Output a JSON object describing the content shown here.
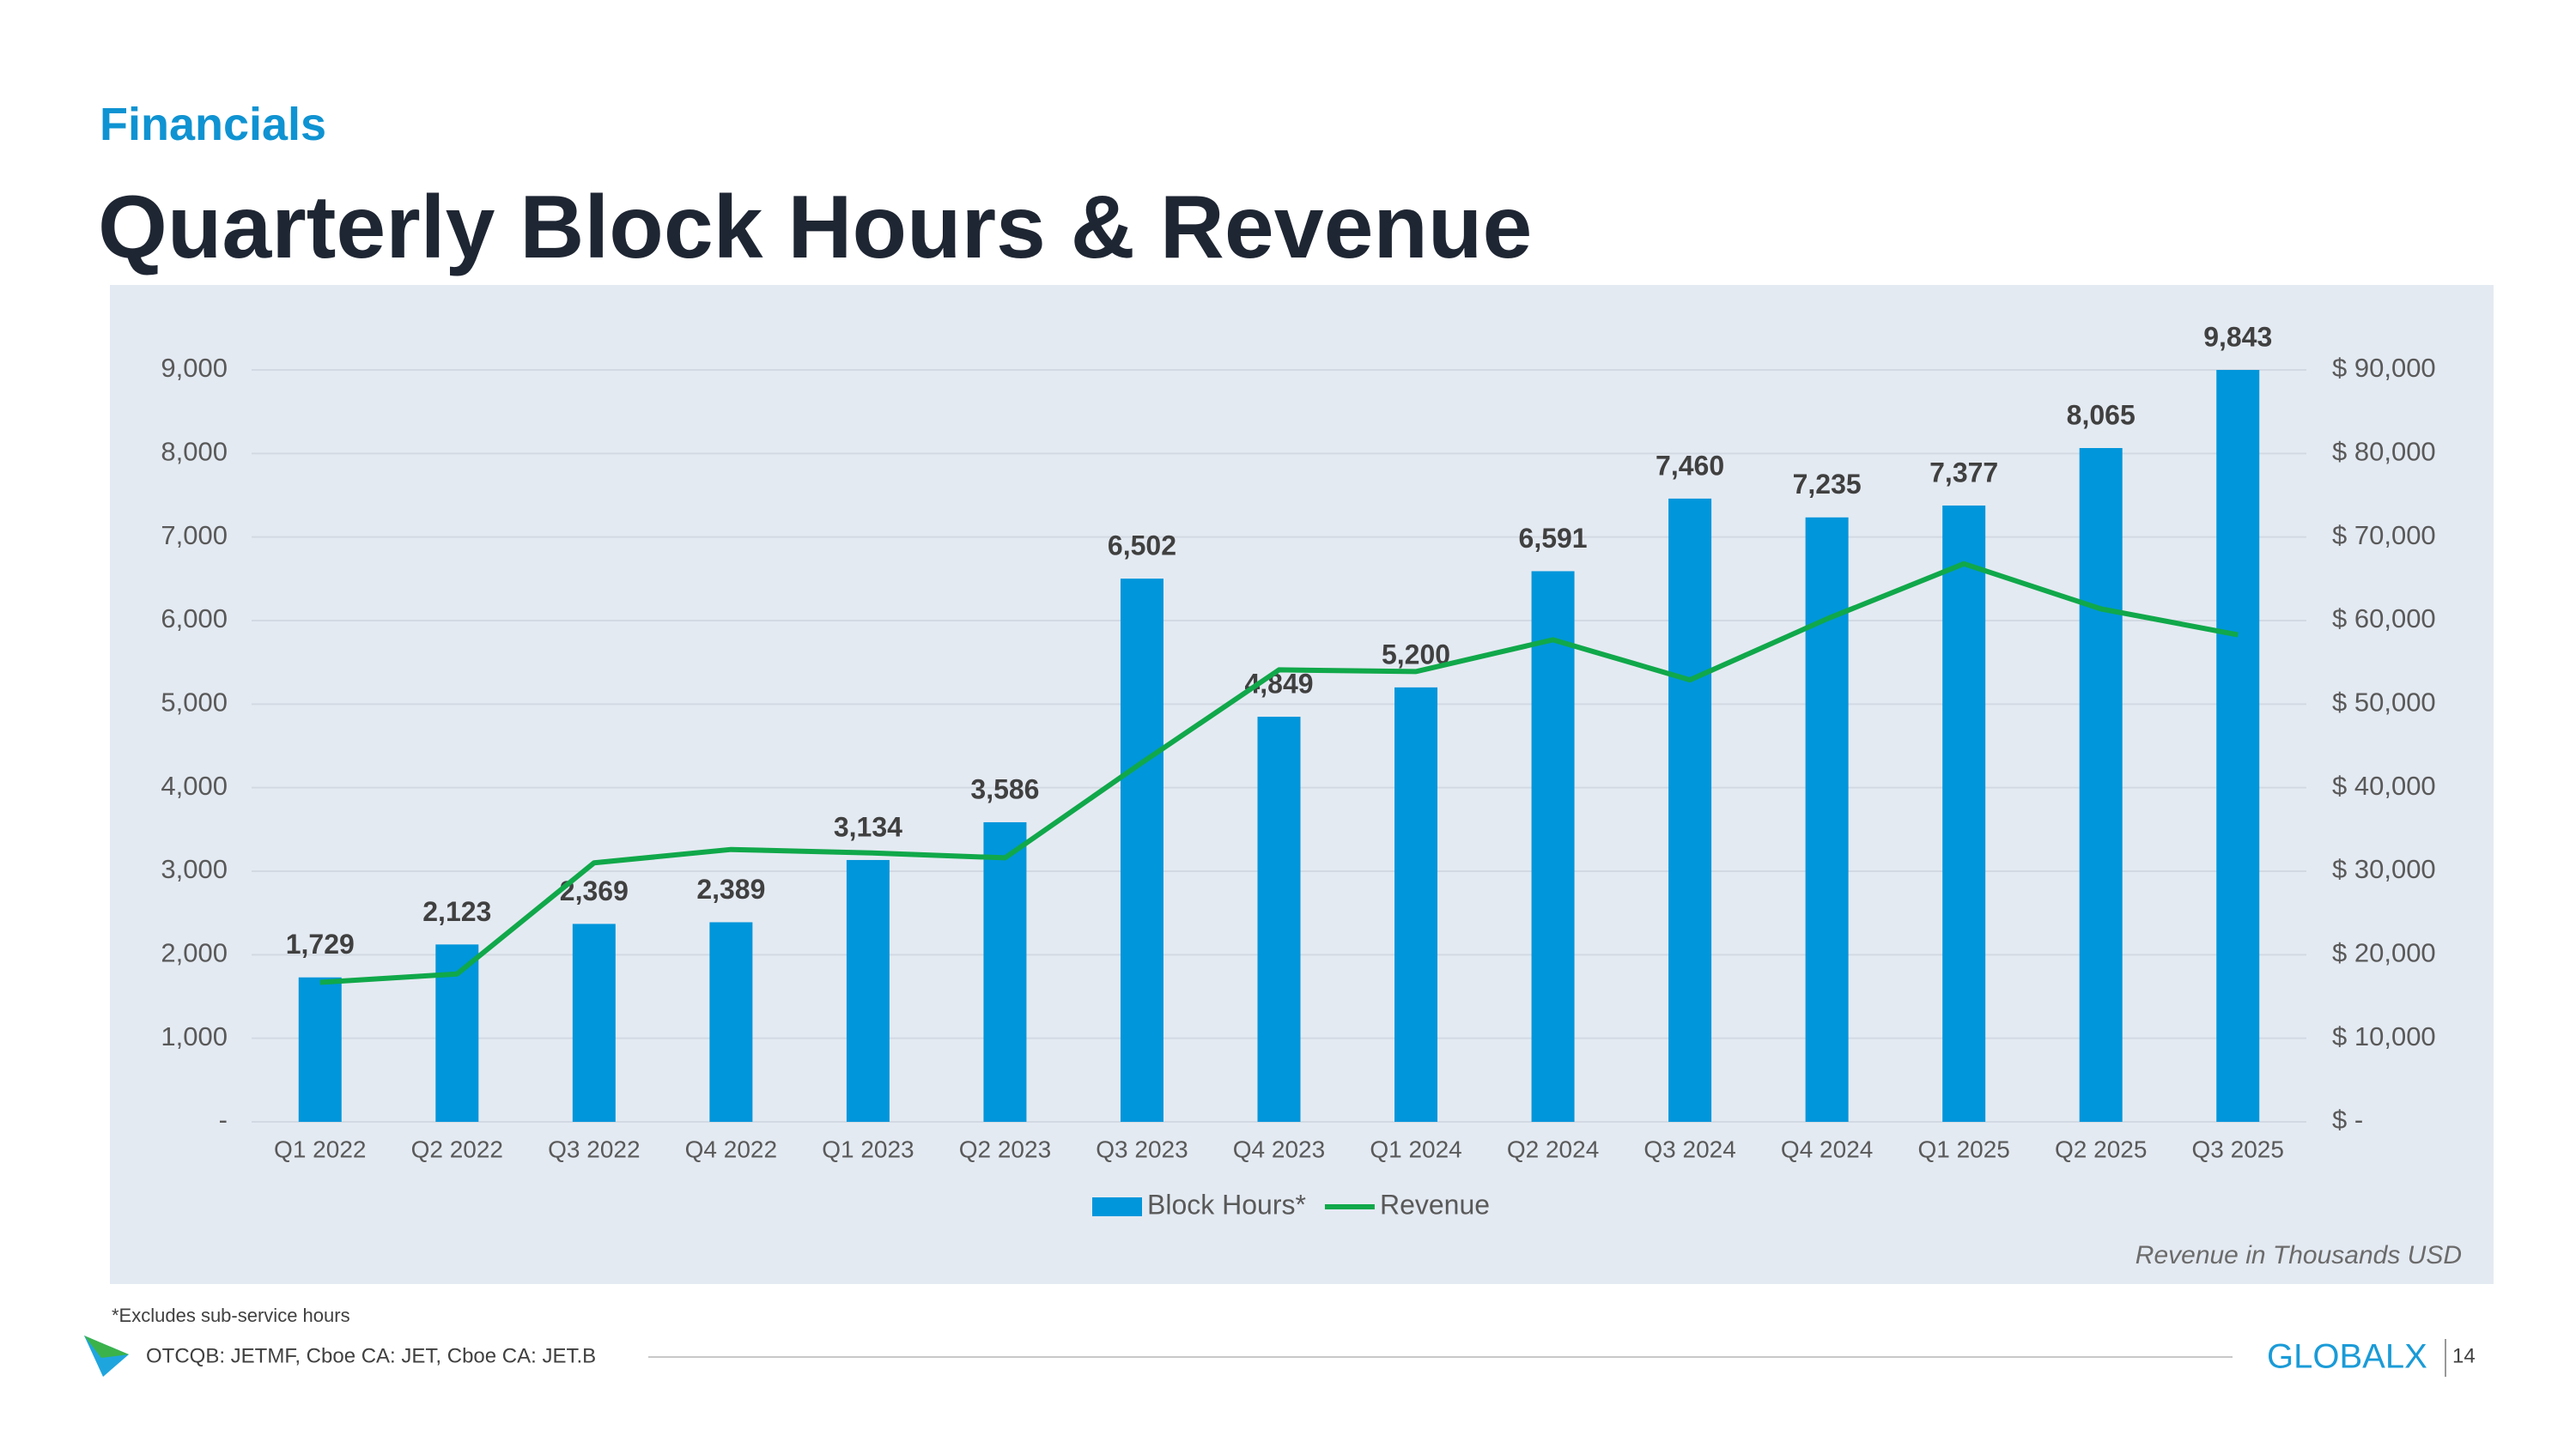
{
  "page": {
    "section": "Financials",
    "title": "Quarterly Block Hours & Revenue",
    "note": "Revenue in Thousands USD",
    "footnote": "*Excludes sub-service hours",
    "footer": "OTCQB: JETMF, Cboe CA: JET, Cboe CA: JET.B",
    "logo": "GLOBALX",
    "page_number": "14"
  },
  "chart_data": {
    "type": "bar_line",
    "categories": [
      "Q1 2022",
      "Q2 2022",
      "Q3 2022",
      "Q4 2022",
      "Q1 2023",
      "Q2 2023",
      "Q3 2023",
      "Q4 2023",
      "Q1 2024",
      "Q2 2024",
      "Q3 2024",
      "Q4 2024",
      "Q1 2025",
      "Q2 2025",
      "Q3 2025"
    ],
    "series": [
      {
        "name": "Block Hours*",
        "type": "bar",
        "color": "#0096db",
        "values": [
          1729,
          2123,
          2369,
          2389,
          3134,
          3586,
          6502,
          4849,
          5200,
          6591,
          7460,
          7235,
          7377,
          8065,
          9843
        ],
        "value_labels": [
          "1,729",
          "2,123",
          "2,369",
          "2,389",
          "3,134",
          "3,586",
          "6,502",
          "4,849",
          "5,200",
          "6,591",
          "7,460",
          "7,235",
          "7,377",
          "8,065",
          "9,843"
        ]
      },
      {
        "name": "Revenue",
        "type": "line",
        "axis": "y2",
        "color": "#10a84a",
        "values": [
          16700,
          17700,
          31000,
          32600,
          32200,
          31600,
          43000,
          54100,
          53900,
          57700,
          52900,
          60200,
          66800,
          61400,
          58300
        ]
      }
    ],
    "ylim": [
      0,
      9000
    ],
    "yticks": [
      {
        "value": 0,
        "label": "-"
      },
      {
        "value": 1000,
        "label": "1,000"
      },
      {
        "value": 2000,
        "label": "2,000"
      },
      {
        "value": 3000,
        "label": "3,000"
      },
      {
        "value": 4000,
        "label": "4,000"
      },
      {
        "value": 5000,
        "label": "5,000"
      },
      {
        "value": 6000,
        "label": "6,000"
      },
      {
        "value": 7000,
        "label": "7,000"
      },
      {
        "value": 8000,
        "label": "8,000"
      },
      {
        "value": 9000,
        "label": "9,000"
      }
    ],
    "y2lim": [
      0,
      90000
    ],
    "y2ticks": [
      {
        "value": 0,
        "label": "$ -"
      },
      {
        "value": 10000,
        "label": "$ 10,000"
      },
      {
        "value": 20000,
        "label": "$ 20,000"
      },
      {
        "value": 30000,
        "label": "$ 30,000"
      },
      {
        "value": 40000,
        "label": "$ 40,000"
      },
      {
        "value": 50000,
        "label": "$ 50,000"
      },
      {
        "value": 60000,
        "label": "$ 60,000"
      },
      {
        "value": 70000,
        "label": "$ 70,000"
      },
      {
        "value": 80000,
        "label": "$ 80,000"
      },
      {
        "value": 90000,
        "label": "$ 90,000"
      }
    ],
    "grid": true,
    "legend": "bottom"
  }
}
